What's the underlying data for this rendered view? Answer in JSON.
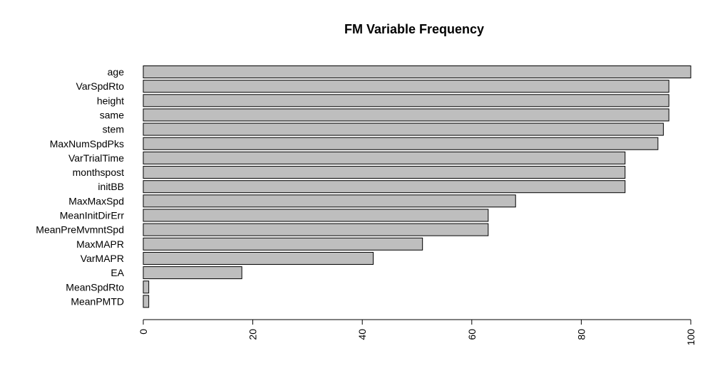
{
  "chart_data": {
    "type": "bar",
    "orientation": "horizontal",
    "title": "FM Variable Frequency",
    "xlabel": "",
    "ylabel": "",
    "categories": [
      "age",
      "VarSpdRto",
      "height",
      "same",
      "stem",
      "MaxNumSpdPks",
      "VarTrialTime",
      "monthspost",
      "initBB",
      "MaxMaxSpd",
      "MeanInitDirErr",
      "MeanPreMvmntSpd",
      "MaxMAPR",
      "VarMAPR",
      "EA",
      "MeanSpdRto",
      "MeanPMTD"
    ],
    "values": [
      100,
      96,
      96,
      96,
      95,
      94,
      88,
      88,
      88,
      68,
      63,
      63,
      51,
      42,
      18,
      1,
      1
    ],
    "xlim": [
      0,
      100
    ],
    "xticks": [
      "0",
      "20",
      "40",
      "60",
      "80",
      "100"
    ],
    "grid": false,
    "legend": "none",
    "colors": {
      "bar_fill": "#bebebe",
      "bar_stroke": "#000000",
      "axis": "#000000",
      "background": "#ffffff"
    }
  }
}
